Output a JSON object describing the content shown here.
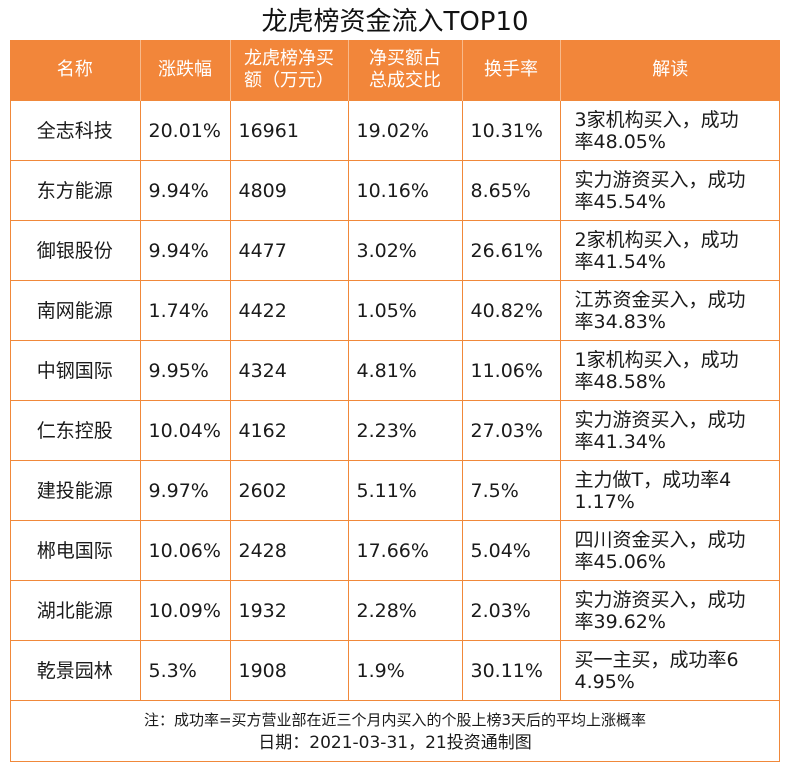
{
  "title": "龙虎榜资金流入TOP10",
  "headers": {
    "name": "名称",
    "change": "涨跌幅",
    "net_buy_1": "龙虎榜净买",
    "net_buy_2": "额（万元）",
    "ratio_1": "净买额占",
    "ratio_2": "总成交比",
    "turnover": "换手率",
    "read": "解读"
  },
  "rows": [
    {
      "name": "全志科技",
      "change": "20.01%",
      "net_buy": "16961",
      "ratio": "19.02%",
      "turnover": "10.31%",
      "read_1": "3家机构买入，成功",
      "read_2": "率48.05%"
    },
    {
      "name": "东方能源",
      "change": "9.94%",
      "net_buy": "4809",
      "ratio": "10.16%",
      "turnover": "8.65%",
      "read_1": "实力游资买入，成功",
      "read_2": "率45.54%"
    },
    {
      "name": "御银股份",
      "change": "9.94%",
      "net_buy": "4477",
      "ratio": "3.02%",
      "turnover": "26.61%",
      "read_1": "2家机构买入，成功",
      "read_2": "率41.54%"
    },
    {
      "name": "南网能源",
      "change": "1.74%",
      "net_buy": "4422",
      "ratio": "1.05%",
      "turnover": "40.82%",
      "read_1": "江苏资金买入，成功",
      "read_2": "率34.83%"
    },
    {
      "name": "中钢国际",
      "change": "9.95%",
      "net_buy": "4324",
      "ratio": "4.81%",
      "turnover": "11.06%",
      "read_1": "1家机构买入，成功",
      "read_2": "率48.58%"
    },
    {
      "name": "仁东控股",
      "change": "10.04%",
      "net_buy": "4162",
      "ratio": "2.23%",
      "turnover": "27.03%",
      "read_1": "实力游资买入，成功",
      "read_2": "率41.34%"
    },
    {
      "name": "建投能源",
      "change": "9.97%",
      "net_buy": "2602",
      "ratio": "5.11%",
      "turnover": "7.5%",
      "read_1": "主力做T，成功率4",
      "read_2": "1.17%"
    },
    {
      "name": "郴电国际",
      "change": "10.06%",
      "net_buy": "2428",
      "ratio": "17.66%",
      "turnover": "5.04%",
      "read_1": "四川资金买入，成功",
      "read_2": "率45.06%"
    },
    {
      "name": "湖北能源",
      "change": "10.09%",
      "net_buy": "1932",
      "ratio": "2.28%",
      "turnover": "2.03%",
      "read_1": "实力游资买入，成功",
      "read_2": "率39.62%"
    },
    {
      "name": "乾景园林",
      "change": "5.3%",
      "net_buy": "1908",
      "ratio": "1.9%",
      "turnover": "30.11%",
      "read_1": "买一主买，成功率6",
      "read_2": "4.95%"
    }
  ],
  "note": "注：成功率=买方营业部在近三个月内买入的个股上榜3天后的平均上涨概率",
  "date_line": "日期：2021-03-31，21投资通制图",
  "colors": {
    "header_bg": "#f2863a",
    "border": "#f0883a"
  }
}
